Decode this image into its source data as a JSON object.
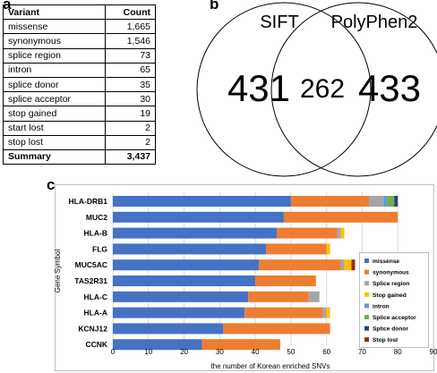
{
  "panels": {
    "a": "a",
    "b": "b",
    "c": "c"
  },
  "table": {
    "headers": [
      "Variant",
      "Count"
    ],
    "rows": [
      {
        "variant": "missense",
        "count": "1,665"
      },
      {
        "variant": "synonymous",
        "count": "1,546"
      },
      {
        "variant": "splice region",
        "count": "73"
      },
      {
        "variant": "intron",
        "count": "65"
      },
      {
        "variant": "splice donor",
        "count": "35"
      },
      {
        "variant": "splice acceptor",
        "count": "30"
      },
      {
        "variant": "stop gained",
        "count": "19"
      },
      {
        "variant": "start lost",
        "count": "2"
      },
      {
        "variant": "stop lost",
        "count": "2"
      }
    ],
    "total": {
      "variant": "Summary",
      "count": "3,437"
    }
  },
  "venn": {
    "left_label": "SIFT",
    "right_label": "PolyPhen2",
    "left_only": "431",
    "overlap": "262",
    "right_only": "433"
  },
  "chart_data": {
    "type": "bar",
    "orientation": "horizontal",
    "stacked": true,
    "categories": [
      "HLA-DRB1",
      "MUC2",
      "HLA-B",
      "FLG",
      "MUC5AC",
      "TAS2R31",
      "HLA-C",
      "HLA-A",
      "KCNJ12",
      "CCNK"
    ],
    "series": [
      {
        "name": "missense",
        "color": "#4472c4",
        "values": [
          50,
          48,
          46,
          43,
          41,
          40,
          38,
          37,
          31,
          25
        ]
      },
      {
        "name": "synonymous",
        "color": "#ed7d31",
        "values": [
          22,
          32,
          17,
          17,
          23,
          17,
          17,
          22,
          30,
          22
        ]
      },
      {
        "name": "Splice region",
        "color": "#a5a5a5",
        "values": [
          4,
          0,
          1,
          0,
          1,
          0,
          3,
          1,
          0,
          0
        ]
      },
      {
        "name": "Stop gained",
        "color": "#ffc000",
        "values": [
          0,
          0,
          1,
          1,
          2,
          0,
          0,
          1,
          0,
          0
        ]
      },
      {
        "name": "intron",
        "color": "#5b9bd5",
        "values": [
          1,
          0,
          0,
          0,
          0,
          0,
          0,
          0,
          0,
          0
        ]
      },
      {
        "name": "Splice acceptor",
        "color": "#70ad47",
        "values": [
          2,
          0,
          0,
          0,
          0,
          0,
          0,
          0,
          0,
          0
        ]
      },
      {
        "name": "Splice donor",
        "color": "#264478",
        "values": [
          1,
          0,
          0,
          0,
          0,
          0,
          0,
          0,
          0,
          0
        ]
      },
      {
        "name": "Stop lost",
        "color": "#9e2a14",
        "values": [
          0,
          0,
          0,
          0,
          1,
          0,
          0,
          0,
          0,
          0
        ]
      }
    ],
    "xlim": [
      0,
      90
    ],
    "xticks": [
      0,
      10,
      20,
      30,
      40,
      50,
      60,
      70,
      80,
      90
    ],
    "xlabel": "the number of Korean enriched SNVs",
    "ylabel": "Gene Symbol",
    "grid": "vertical",
    "legend": "right"
  }
}
